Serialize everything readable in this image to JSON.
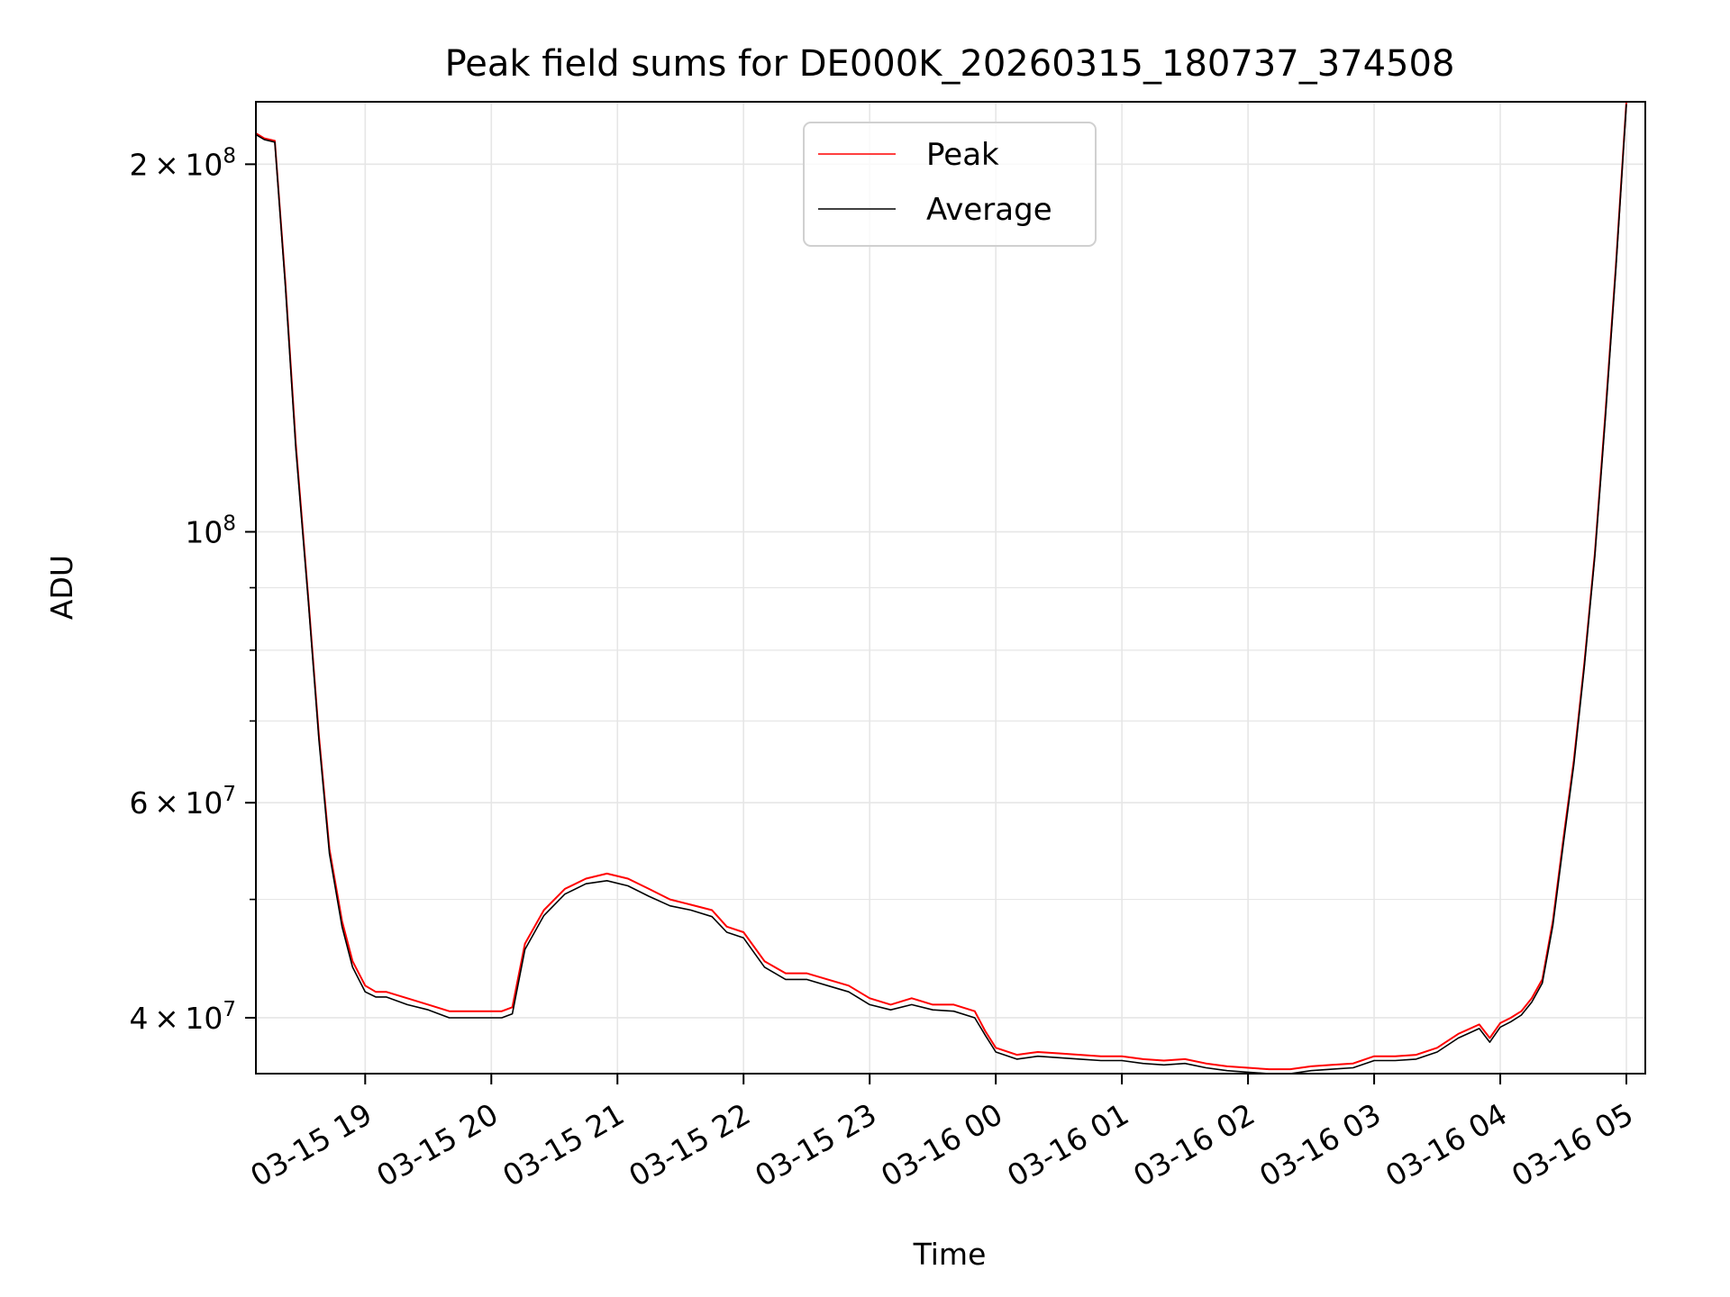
{
  "chart_data": {
    "type": "line",
    "title": "Peak field sums for DE000K_20260315_180737_374508",
    "xlabel": "Time",
    "ylabel": "ADU",
    "y_scale": "log",
    "ylim": [
      36000000,
      225000000
    ],
    "xlim": [
      "2026-03-15 18:08",
      "2026-03-16 05:09"
    ],
    "grid": true,
    "legend_position": "top-center",
    "x_tick_labels": [
      "03-15 19",
      "03-15 20",
      "03-15 21",
      "03-15 22",
      "03-15 23",
      "03-16 00",
      "03-16 01",
      "03-16 02",
      "03-16 03",
      "03-16 04",
      "03-16 05"
    ],
    "x_ticks": [
      "2026-03-15 19:00",
      "2026-03-15 20:00",
      "2026-03-15 21:00",
      "2026-03-15 22:00",
      "2026-03-15 23:00",
      "2026-03-16 00:00",
      "2026-03-16 01:00",
      "2026-03-16 02:00",
      "2026-03-16 03:00",
      "2026-03-16 04:00",
      "2026-03-16 05:00"
    ],
    "y_ticks_major": [
      {
        "value": 200000000,
        "mantissa": "2",
        "exp": "8"
      },
      {
        "value": 100000000,
        "mantissa": "",
        "exp": "8"
      },
      {
        "value": 60000000,
        "mantissa": "6",
        "exp": "7"
      },
      {
        "value": 40000000,
        "mantissa": "4",
        "exp": "7"
      }
    ],
    "y_ticks_minor": [
      90000000,
      80000000,
      70000000,
      50000000
    ],
    "colors": {
      "peak": "#ff0000",
      "average": "#000000",
      "grid": "#e6e6e6"
    },
    "series": [
      {
        "name": "Peak",
        "color": "#ff0000",
        "x": [
          "2026-03-15 18:08",
          "2026-03-15 18:12",
          "2026-03-15 18:17",
          "2026-03-15 18:22",
          "2026-03-15 18:27",
          "2026-03-15 18:33",
          "2026-03-15 18:38",
          "2026-03-15 18:43",
          "2026-03-15 18:49",
          "2026-03-15 18:54",
          "2026-03-15 19:00",
          "2026-03-15 19:05",
          "2026-03-15 19:10",
          "2026-03-15 19:20",
          "2026-03-15 19:30",
          "2026-03-15 19:40",
          "2026-03-15 19:50",
          "2026-03-15 20:00",
          "2026-03-15 20:05",
          "2026-03-15 20:10",
          "2026-03-15 20:16",
          "2026-03-15 20:25",
          "2026-03-15 20:35",
          "2026-03-15 20:45",
          "2026-03-15 20:55",
          "2026-03-15 21:05",
          "2026-03-15 21:15",
          "2026-03-15 21:25",
          "2026-03-15 21:35",
          "2026-03-15 21:45",
          "2026-03-15 21:52",
          "2026-03-15 22:00",
          "2026-03-15 22:10",
          "2026-03-15 22:20",
          "2026-03-15 22:30",
          "2026-03-15 22:40",
          "2026-03-15 22:50",
          "2026-03-15 23:00",
          "2026-03-15 23:10",
          "2026-03-15 23:20",
          "2026-03-15 23:30",
          "2026-03-15 23:40",
          "2026-03-15 23:50",
          "2026-03-15 23:55",
          "2026-03-16 00:00",
          "2026-03-16 00:10",
          "2026-03-16 00:20",
          "2026-03-16 00:30",
          "2026-03-16 00:40",
          "2026-03-16 00:50",
          "2026-03-16 01:00",
          "2026-03-16 01:10",
          "2026-03-16 01:20",
          "2026-03-16 01:30",
          "2026-03-16 01:40",
          "2026-03-16 01:50",
          "2026-03-16 02:00",
          "2026-03-16 02:10",
          "2026-03-16 02:20",
          "2026-03-16 02:30",
          "2026-03-16 02:40",
          "2026-03-16 02:50",
          "2026-03-16 03:00",
          "2026-03-16 03:10",
          "2026-03-16 03:20",
          "2026-03-16 03:30",
          "2026-03-16 03:40",
          "2026-03-16 03:50",
          "2026-03-16 03:55",
          "2026-03-16 04:00",
          "2026-03-16 04:05",
          "2026-03-16 04:10",
          "2026-03-16 04:15",
          "2026-03-16 04:20",
          "2026-03-16 04:25",
          "2026-03-16 04:30",
          "2026-03-16 04:35",
          "2026-03-16 04:40",
          "2026-03-16 04:45",
          "2026-03-16 04:50",
          "2026-03-16 04:55",
          "2026-03-16 05:00"
        ],
        "values": [
          212000000,
          210000000,
          209000000,
          160000000,
          118000000,
          88000000,
          68000000,
          55000000,
          48000000,
          44500000,
          42500000,
          42000000,
          42000000,
          41500000,
          41000000,
          40500000,
          40500000,
          40500000,
          40500000,
          40800000,
          46000000,
          49000000,
          51000000,
          52000000,
          52500000,
          52000000,
          51000000,
          50000000,
          49500000,
          49000000,
          47500000,
          47000000,
          44500000,
          43500000,
          43500000,
          43000000,
          42500000,
          41500000,
          41000000,
          41500000,
          41000000,
          41000000,
          40500000,
          39000000,
          37800000,
          37300000,
          37500000,
          37400000,
          37300000,
          37200000,
          37200000,
          37000000,
          36900000,
          37000000,
          36700000,
          36500000,
          36400000,
          36300000,
          36300000,
          36500000,
          36600000,
          36700000,
          37200000,
          37200000,
          37300000,
          37800000,
          38800000,
          39500000,
          38500000,
          39600000,
          40000000,
          40500000,
          41500000,
          43000000,
          48000000,
          56000000,
          65000000,
          78000000,
          96000000,
          125000000,
          165000000,
          225000000
        ]
      },
      {
        "name": "Average",
        "color": "#000000",
        "x": [
          "2026-03-15 18:08",
          "2026-03-15 18:12",
          "2026-03-15 18:17",
          "2026-03-15 18:22",
          "2026-03-15 18:27",
          "2026-03-15 18:33",
          "2026-03-15 18:38",
          "2026-03-15 18:43",
          "2026-03-15 18:49",
          "2026-03-15 18:54",
          "2026-03-15 19:00",
          "2026-03-15 19:05",
          "2026-03-15 19:10",
          "2026-03-15 19:20",
          "2026-03-15 19:30",
          "2026-03-15 19:40",
          "2026-03-15 19:50",
          "2026-03-15 20:00",
          "2026-03-15 20:05",
          "2026-03-15 20:10",
          "2026-03-15 20:16",
          "2026-03-15 20:25",
          "2026-03-15 20:35",
          "2026-03-15 20:45",
          "2026-03-15 20:55",
          "2026-03-15 21:05",
          "2026-03-15 21:15",
          "2026-03-15 21:25",
          "2026-03-15 21:35",
          "2026-03-15 21:45",
          "2026-03-15 21:52",
          "2026-03-15 22:00",
          "2026-03-15 22:10",
          "2026-03-15 22:20",
          "2026-03-15 22:30",
          "2026-03-15 22:40",
          "2026-03-15 22:50",
          "2026-03-15 23:00",
          "2026-03-15 23:10",
          "2026-03-15 23:20",
          "2026-03-15 23:30",
          "2026-03-15 23:40",
          "2026-03-15 23:50",
          "2026-03-15 23:55",
          "2026-03-16 00:00",
          "2026-03-16 00:10",
          "2026-03-16 00:20",
          "2026-03-16 00:30",
          "2026-03-16 00:40",
          "2026-03-16 00:50",
          "2026-03-16 01:00",
          "2026-03-16 01:10",
          "2026-03-16 01:20",
          "2026-03-16 01:30",
          "2026-03-16 01:40",
          "2026-03-16 01:50",
          "2026-03-16 02:00",
          "2026-03-16 02:10",
          "2026-03-16 02:20",
          "2026-03-16 02:30",
          "2026-03-16 02:40",
          "2026-03-16 02:50",
          "2026-03-16 03:00",
          "2026-03-16 03:10",
          "2026-03-16 03:20",
          "2026-03-16 03:30",
          "2026-03-16 03:40",
          "2026-03-16 03:50",
          "2026-03-16 03:55",
          "2026-03-16 04:00",
          "2026-03-16 04:05",
          "2026-03-16 04:10",
          "2026-03-16 04:15",
          "2026-03-16 04:20",
          "2026-03-16 04:25",
          "2026-03-16 04:30",
          "2026-03-16 04:35",
          "2026-03-16 04:40",
          "2026-03-16 04:45",
          "2026-03-16 04:50",
          "2026-03-16 04:55",
          "2026-03-16 05:00"
        ],
        "values": [
          211500000,
          209500000,
          208500000,
          159000000,
          117000000,
          87500000,
          67500000,
          54500000,
          47500000,
          44000000,
          42000000,
          41600000,
          41600000,
          41000000,
          40600000,
          40000000,
          40000000,
          40000000,
          40000000,
          40300000,
          45500000,
          48500000,
          50500000,
          51500000,
          51800000,
          51300000,
          50300000,
          49400000,
          49000000,
          48400000,
          47000000,
          46500000,
          44000000,
          43000000,
          43000000,
          42500000,
          42000000,
          41000000,
          40600000,
          41000000,
          40600000,
          40500000,
          40000000,
          38700000,
          37500000,
          37000000,
          37200000,
          37100000,
          37000000,
          36900000,
          36900000,
          36700000,
          36600000,
          36700000,
          36400000,
          36200000,
          36100000,
          36000000,
          36000000,
          36200000,
          36300000,
          36400000,
          36900000,
          36900000,
          37000000,
          37500000,
          38500000,
          39200000,
          38200000,
          39300000,
          39700000,
          40200000,
          41200000,
          42700000,
          47600000,
          55500000,
          64500000,
          77500000,
          95500000,
          124000000,
          164000000,
          224000000
        ]
      }
    ]
  }
}
